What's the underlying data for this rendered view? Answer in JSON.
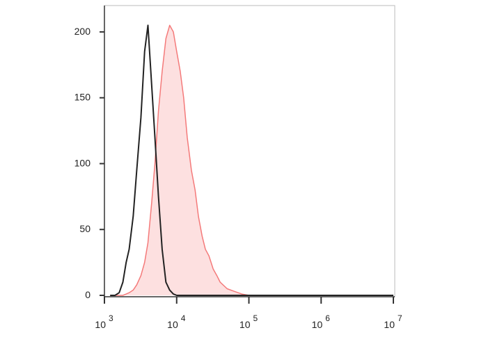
{
  "chart_data": {
    "type": "line",
    "x": [
      1200,
      1400,
      1600,
      1800,
      2000,
      2200,
      2500,
      2800,
      3200,
      3600,
      4000,
      4500,
      5000,
      5600,
      6300,
      7100,
      8000,
      9000,
      10000,
      11200,
      12500,
      14000,
      16000,
      18000,
      20000,
      22500,
      25000,
      28000,
      32000,
      36000,
      40000,
      50000,
      63000,
      80000,
      100000,
      200000,
      1000000,
      10000000
    ],
    "series": [
      {
        "color": "#f47a7a",
        "fill": "#fde0e0",
        "values": [
          0,
          0,
          0,
          0,
          1,
          2,
          4,
          8,
          15,
          25,
          40,
          70,
          100,
          140,
          170,
          195,
          205,
          200,
          185,
          170,
          150,
          120,
          95,
          80,
          60,
          45,
          35,
          30,
          20,
          15,
          10,
          5,
          3,
          1,
          0,
          0,
          0,
          0
        ]
      },
      {
        "color": "#222222",
        "values": [
          0,
          0,
          2,
          10,
          25,
          35,
          60,
          95,
          135,
          185,
          205,
          160,
          120,
          75,
          35,
          10,
          4,
          1,
          0,
          0,
          0,
          0,
          0,
          0,
          0,
          0,
          0,
          0,
          0,
          0,
          0,
          0,
          0,
          0,
          0,
          0,
          0,
          0
        ]
      }
    ],
    "xscale": "log",
    "xlim": [
      1000,
      10000000
    ],
    "xticks": [
      {
        "value": 1000,
        "label": "10",
        "sup": "3"
      },
      {
        "value": 10000,
        "label": "10",
        "sup": "4"
      },
      {
        "value": 100000,
        "label": "10",
        "sup": "5"
      },
      {
        "value": 1000000,
        "label": "10",
        "sup": "6"
      },
      {
        "value": 10000000,
        "label": "10",
        "sup": "7"
      }
    ],
    "ylim": [
      0,
      220
    ],
    "yticks": [
      0,
      50,
      100,
      150,
      200
    ]
  }
}
